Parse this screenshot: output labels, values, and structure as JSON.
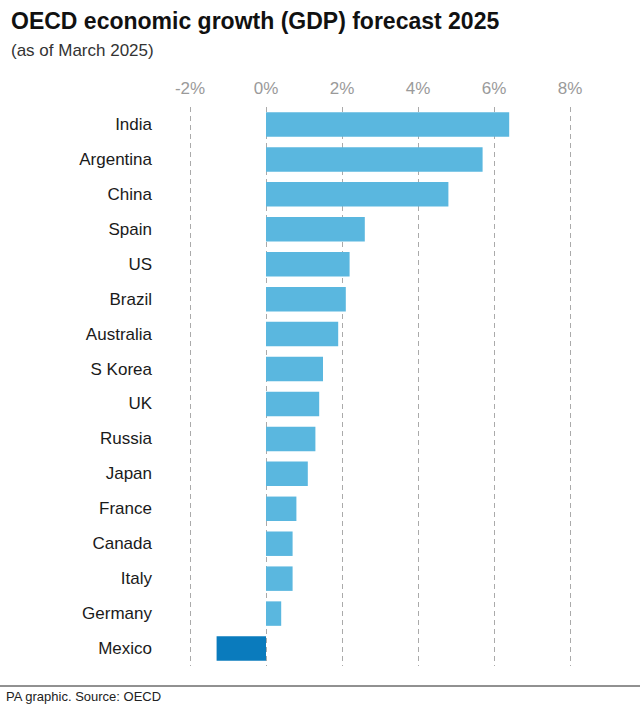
{
  "chart_data": {
    "type": "bar",
    "orientation": "horizontal",
    "title": "OECD economic growth (GDP) forecast 2025",
    "subtitle": "(as of March 2025)",
    "source": "PA graphic. Source: OECD",
    "categories": [
      "India",
      "Argentina",
      "China",
      "Spain",
      "US",
      "Brazil",
      "Australia",
      "S Korea",
      "UK",
      "Russia",
      "Japan",
      "France",
      "Canada",
      "Italy",
      "Germany",
      "Mexico"
    ],
    "values": [
      6.4,
      5.7,
      4.8,
      2.6,
      2.2,
      2.1,
      1.9,
      1.5,
      1.4,
      1.3,
      1.1,
      0.8,
      0.7,
      0.7,
      0.4,
      -1.3
    ],
    "colors": [
      "#5ab7df",
      "#5ab7df",
      "#5ab7df",
      "#5ab7df",
      "#5ab7df",
      "#5ab7df",
      "#5ab7df",
      "#5ab7df",
      "#5ab7df",
      "#5ab7df",
      "#5ab7df",
      "#5ab7df",
      "#5ab7df",
      "#5ab7df",
      "#5ab7df",
      "#0a7bbd"
    ],
    "xlim": [
      -2,
      8
    ],
    "xticks": [
      {
        "value": -2,
        "label": "-2%"
      },
      {
        "value": 0,
        "label": "0%"
      },
      {
        "value": 2,
        "label": "2%"
      },
      {
        "value": 4,
        "label": "4%"
      },
      {
        "value": 6,
        "label": "6%"
      },
      {
        "value": 8,
        "label": "8%"
      }
    ],
    "grid": true
  }
}
